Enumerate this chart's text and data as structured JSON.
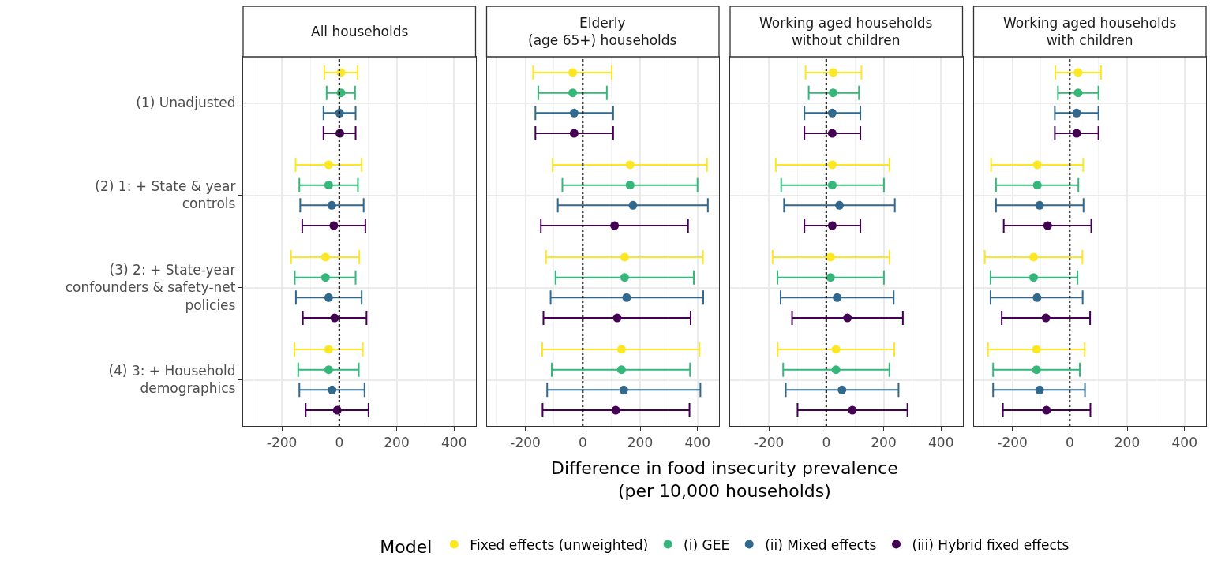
{
  "chart_data": [
    {
      "type": "scatter",
      "orientation": "horizontal",
      "title": "All households",
      "xlabel": "Difference in food insecurity prevalence\n(per 10,000 households)",
      "legend_title": "Model",
      "legend": "bottom",
      "grid": true,
      "marker": "circle",
      "categories": [
        "(1) Unadjusted",
        "(2) 1: + State & year\ncontrols",
        "(3) 2: + State-year\nconfounders & safety-net\npolicies",
        "(4) 3: + Household\ndemographics"
      ],
      "xlim": [
        -335,
        475
      ],
      "xticks": [
        -200,
        0,
        200,
        400
      ],
      "ref_lines": [
        {
          "axis": "x",
          "value": 0,
          "line_style": "dotted",
          "color": "#000000"
        }
      ],
      "series": [
        {
          "name": "Fixed effects (unweighted)",
          "color": "#fde725",
          "values": [
            6,
            -37,
            -48,
            -37
          ],
          "errors": [
            [
              -52,
              64
            ],
            [
              -152,
              78
            ],
            [
              -168,
              70
            ],
            [
              -156,
              82
            ]
          ]
        },
        {
          "name": "(i) GEE",
          "color": "#35b779",
          "values": [
            6,
            -37,
            -48,
            -37
          ],
          "errors": [
            [
              -44,
              55
            ],
            [
              -139,
              65
            ],
            [
              -155,
              57
            ],
            [
              -143,
              68
            ]
          ]
        },
        {
          "name": "(ii) Mixed effects",
          "color": "#31688e",
          "values": [
            1,
            -26,
            -37,
            -25
          ],
          "errors": [
            [
              -55,
              57
            ],
            [
              -136,
              85
            ],
            [
              -151,
              78
            ],
            [
              -139,
              88
            ]
          ]
        },
        {
          "name": "(iii) Hybrid fixed effects",
          "color": "#440154",
          "values": [
            2,
            -19,
            -16,
            -7
          ],
          "errors": [
            [
              -55,
              57
            ],
            [
              -129,
              91
            ],
            [
              -127,
              95
            ],
            [
              -117,
              102
            ]
          ]
        }
      ]
    },
    {
      "type": "scatter",
      "orientation": "horizontal",
      "title": "Elderly\n(age 65+) households",
      "grid": true,
      "marker": "circle",
      "tick_labels": "x",
      "categories": [
        null,
        null,
        null,
        null
      ],
      "xlim": [
        -335,
        475
      ],
      "xticks": [
        -200,
        0,
        200,
        400
      ],
      "ref_lines": [
        {
          "axis": "x",
          "value": 0,
          "line_style": "dotted",
          "color": "#000000"
        }
      ],
      "series": [
        {
          "color": "#fde725",
          "values": [
            -35,
            165,
            146,
            135
          ],
          "errors": [
            [
              -173,
              101
            ],
            [
              -105,
              433
            ],
            [
              -128,
              419
            ],
            [
              -141,
              407
            ]
          ]
        },
        {
          "color": "#35b779",
          "values": [
            -35,
            165,
            146,
            135
          ],
          "errors": [
            [
              -155,
              84
            ],
            [
              -71,
              400
            ],
            [
              -95,
              387
            ],
            [
              -108,
              374
            ]
          ]
        },
        {
          "color": "#31688e",
          "values": [
            -30,
            175,
            153,
            143
          ],
          "errors": [
            [
              -165,
              106
            ],
            [
              -87,
              436
            ],
            [
              -112,
              420
            ],
            [
              -124,
              410
            ]
          ]
        },
        {
          "color": "#440154",
          "values": [
            -30,
            111,
            120,
            115
          ],
          "errors": [
            [
              -165,
              106
            ],
            [
              -146,
              367
            ],
            [
              -137,
              376
            ],
            [
              -140,
              372
            ]
          ]
        }
      ]
    },
    {
      "type": "scatter",
      "orientation": "horizontal",
      "title": "Working aged households\nwithout children",
      "grid": true,
      "marker": "circle",
      "tick_labels": "x",
      "categories": [
        null,
        null,
        null,
        null
      ],
      "xlim": [
        -335,
        475
      ],
      "xticks": [
        -200,
        0,
        200,
        400
      ],
      "ref_lines": [
        {
          "axis": "x",
          "value": 0,
          "line_style": "dotted",
          "color": "#000000"
        }
      ],
      "series": [
        {
          "color": "#fde725",
          "values": [
            24,
            21,
            15,
            34
          ],
          "errors": [
            [
              -72,
              123
            ],
            [
              -176,
              220
            ],
            [
              -187,
              220
            ],
            [
              -169,
              237
            ]
          ]
        },
        {
          "color": "#35b779",
          "values": [
            24,
            21,
            15,
            34
          ],
          "errors": [
            [
              -61,
              114
            ],
            [
              -157,
              201
            ],
            [
              -170,
              201
            ],
            [
              -150,
              220
            ]
          ]
        },
        {
          "color": "#31688e",
          "values": [
            21,
            46,
            38,
            55
          ],
          "errors": [
            [
              -76,
              119
            ],
            [
              -147,
              239
            ],
            [
              -159,
              235
            ],
            [
              -141,
              252
            ]
          ]
        },
        {
          "color": "#440154",
          "values": [
            21,
            21,
            74,
            91
          ],
          "errors": [
            [
              -76,
              119
            ],
            [
              -76,
              119
            ],
            [
              -119,
              267
            ],
            [
              -100,
              283
            ]
          ]
        }
      ]
    },
    {
      "type": "scatter",
      "orientation": "horizontal",
      "title": "Working aged households\nwith children",
      "grid": true,
      "marker": "circle",
      "tick_labels": "x",
      "categories": [
        null,
        null,
        null,
        null
      ],
      "xlim": [
        -335,
        475
      ],
      "xticks": [
        -200,
        0,
        200,
        400
      ],
      "ref_lines": [
        {
          "axis": "x",
          "value": 0,
          "line_style": "dotted",
          "color": "#000000"
        }
      ],
      "series": [
        {
          "color": "#fde725",
          "values": [
            29,
            -113,
            -126,
            -116
          ],
          "errors": [
            [
              -50,
              109
            ],
            [
              -274,
              47
            ],
            [
              -296,
              44
            ],
            [
              -285,
              52
            ]
          ]
        },
        {
          "color": "#35b779",
          "values": [
            29,
            -113,
            -126,
            -116
          ],
          "errors": [
            [
              -41,
              100
            ],
            [
              -257,
              30
            ],
            [
              -276,
              27
            ],
            [
              -267,
              35
            ]
          ]
        },
        {
          "color": "#31688e",
          "values": [
            24,
            -105,
            -114,
            -105
          ],
          "errors": [
            [
              -52,
              100
            ],
            [
              -257,
              48
            ],
            [
              -276,
              45
            ],
            [
              -267,
              53
            ]
          ]
        },
        {
          "color": "#440154",
          "values": [
            24,
            -77,
            -83,
            -81
          ],
          "errors": [
            [
              -52,
              100
            ],
            [
              -230,
              75
            ],
            [
              -237,
              71
            ],
            [
              -233,
              72
            ]
          ]
        }
      ]
    }
  ]
}
